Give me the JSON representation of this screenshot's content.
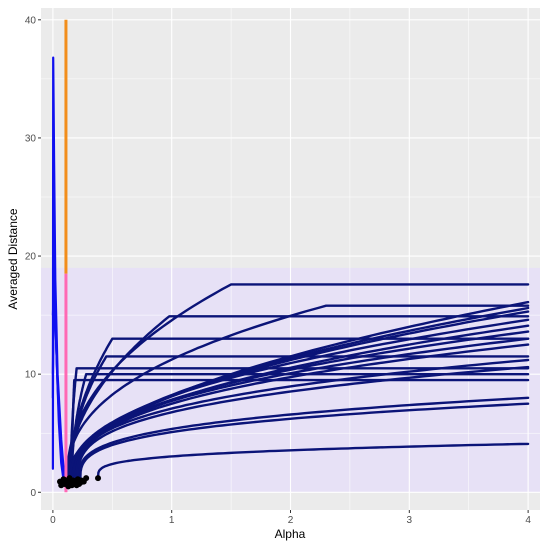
{
  "chart_data": {
    "type": "line",
    "title": "",
    "xlabel": "Alpha",
    "ylabel": "Averaged Distance",
    "xlim": [
      -0.1,
      4.1
    ],
    "ylim": [
      -1.5,
      41
    ],
    "x_ticks": [
      0,
      1,
      2,
      3,
      4
    ],
    "y_ticks": [
      0,
      10,
      20,
      30,
      40
    ],
    "x_tick_labels": [
      "0",
      "1",
      "2",
      "3",
      "4"
    ],
    "y_tick_labels": [
      "0",
      "10",
      "20",
      "30",
      "40"
    ],
    "grid": true,
    "legend": "none",
    "vertical_lines": [
      {
        "x": 0.11,
        "y_from": 18.5,
        "y_to": 40,
        "color": "#F28E1C"
      },
      {
        "x": 0.11,
        "y_from": 0,
        "y_to": 18.5,
        "color": "#FF69B4"
      }
    ],
    "colors": {
      "panel_background": "#EBEBEB",
      "grid_line": "#FFFFFF",
      "curve_dark": "#0B1478",
      "curve_bright": "#1010F0",
      "uncertainty_band": "#E4D8FF",
      "point": "#000000"
    },
    "uncertainty_band": {
      "x_from": -0.1,
      "x_to": 4.1,
      "y_from": 0,
      "y_to": 19
    },
    "series": [
      {
        "kind": "spike",
        "x": [
          0.0,
          0.003,
          0.01,
          0.02,
          0.04,
          0.07,
          0.09,
          0.1
        ],
        "values": [
          2.0,
          36.8,
          28.0,
          18.0,
          10.0,
          4.5,
          2.0,
          1.2
        ]
      },
      {
        "kind": "spike",
        "x": [
          0.0,
          0.005,
          0.015,
          0.03,
          0.05,
          0.07,
          0.09,
          0.1
        ],
        "values": [
          8.0,
          26.0,
          18.5,
          12.0,
          7.0,
          3.0,
          1.5,
          1.0
        ]
      },
      {
        "kind": "spike",
        "x": [
          0.0,
          0.01,
          0.02,
          0.04,
          0.06,
          0.08,
          0.1
        ],
        "values": [
          10.0,
          19.0,
          15.0,
          9.0,
          5.0,
          2.0,
          0.8
        ]
      },
      {
        "kind": "spike",
        "x": [
          0.0,
          0.01,
          0.03,
          0.05,
          0.07,
          0.09
        ],
        "values": [
          15.0,
          18.0,
          12.0,
          6.0,
          2.5,
          1.0
        ]
      },
      {
        "kind": "plateau",
        "x0": 0.12,
        "y0": 1.0,
        "peak_x": 1.5,
        "peak_y": 17.6,
        "k": 0.45
      },
      {
        "kind": "plateau",
        "x0": 0.12,
        "y0": 0.8,
        "peak_x": 2.3,
        "peak_y": 15.8,
        "k": 0.4
      },
      {
        "kind": "plateau",
        "x0": 0.13,
        "y0": 1.2,
        "peak_x": 0.98,
        "peak_y": 14.9,
        "k": 0.5
      },
      {
        "kind": "plateau",
        "x0": 0.14,
        "y0": 0.9,
        "peak_x": 0.5,
        "peak_y": 13.0,
        "k": 0.5
      },
      {
        "kind": "plateau",
        "x0": 0.15,
        "y0": 1.5,
        "peak_x": 0.45,
        "peak_y": 11.5,
        "k": 0.5
      },
      {
        "kind": "plateau",
        "x0": 0.15,
        "y0": 1.0,
        "peak_x": 0.2,
        "peak_y": 10.5,
        "k": 0.5
      },
      {
        "kind": "plateau",
        "x0": 0.16,
        "y0": 1.2,
        "peak_x": 0.28,
        "peak_y": 10.0,
        "k": 0.5
      },
      {
        "kind": "plateau",
        "x0": 0.16,
        "y0": 0.8,
        "peak_x": 0.18,
        "peak_y": 9.5,
        "k": 0.5
      },
      {
        "kind": "curve",
        "x0": 0.12,
        "y0": 1.0,
        "y_end": 16.1,
        "k": 0.5
      },
      {
        "kind": "curve",
        "x0": 0.13,
        "y0": 1.2,
        "y_end": 15.6,
        "k": 0.48
      },
      {
        "kind": "curve",
        "x0": 0.14,
        "y0": 0.9,
        "y_end": 15.3,
        "k": 0.46
      },
      {
        "kind": "curve",
        "x0": 0.15,
        "y0": 1.3,
        "y_end": 14.6,
        "k": 0.44
      },
      {
        "kind": "curve",
        "x0": 0.16,
        "y0": 0.7,
        "y_end": 14.1,
        "k": 0.42
      },
      {
        "kind": "curve",
        "x0": 0.17,
        "y0": 1.0,
        "y_end": 13.6,
        "k": 0.4
      },
      {
        "kind": "curve",
        "x0": 0.18,
        "y0": 1.1,
        "y_end": 13.0,
        "k": 0.38
      },
      {
        "kind": "curve",
        "x0": 0.19,
        "y0": 0.8,
        "y_end": 12.5,
        "k": 0.36
      },
      {
        "kind": "curve",
        "x0": 0.2,
        "y0": 1.2,
        "y_end": 11.2,
        "k": 0.34
      },
      {
        "kind": "curve",
        "x0": 0.21,
        "y0": 0.9,
        "y_end": 10.6,
        "k": 0.32
      },
      {
        "kind": "curve",
        "x0": 0.22,
        "y0": 1.0,
        "y_end": 8.0,
        "k": 0.3
      },
      {
        "kind": "curve",
        "x0": 0.23,
        "y0": 0.8,
        "y_end": 7.5,
        "k": 0.28
      },
      {
        "kind": "curve",
        "x0": 0.38,
        "y0": 1.2,
        "y_end": 4.1,
        "k": 0.26
      }
    ],
    "points": [
      {
        "x": 0.06,
        "y": 0.9
      },
      {
        "x": 0.07,
        "y": 0.6
      },
      {
        "x": 0.09,
        "y": 1.1
      },
      {
        "x": 0.1,
        "y": 0.7
      },
      {
        "x": 0.12,
        "y": 1.0
      },
      {
        "x": 0.13,
        "y": 0.5
      },
      {
        "x": 0.14,
        "y": 1.2
      },
      {
        "x": 0.15,
        "y": 0.8
      },
      {
        "x": 0.16,
        "y": 0.6
      },
      {
        "x": 0.17,
        "y": 1.0
      },
      {
        "x": 0.18,
        "y": 0.7
      },
      {
        "x": 0.19,
        "y": 0.9
      },
      {
        "x": 0.2,
        "y": 0.6
      },
      {
        "x": 0.21,
        "y": 1.1
      },
      {
        "x": 0.22,
        "y": 0.7
      },
      {
        "x": 0.23,
        "y": 0.8
      },
      {
        "x": 0.24,
        "y": 1.0
      },
      {
        "x": 0.26,
        "y": 0.9
      },
      {
        "x": 0.28,
        "y": 1.2
      },
      {
        "x": 0.38,
        "y": 1.2
      }
    ]
  }
}
